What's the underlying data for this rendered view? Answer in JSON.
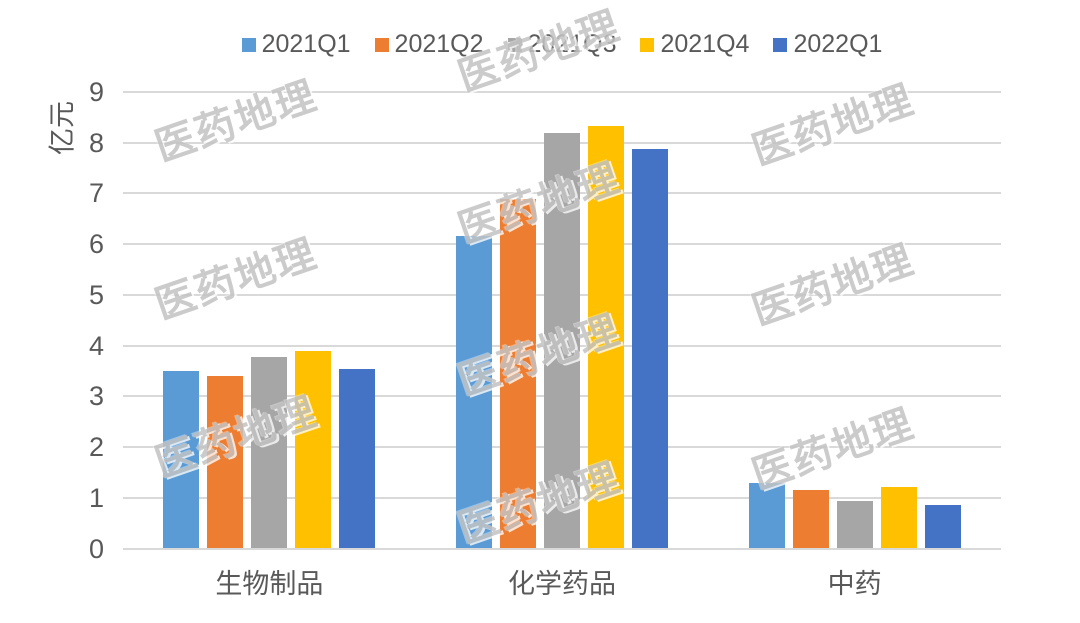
{
  "watermark": {
    "text": "医药地理"
  },
  "colors": {
    "grid": "#d9d9d9",
    "label_text": "#595959"
  },
  "chart_data": {
    "type": "bar",
    "title": "",
    "xlabel": "",
    "ylabel": "亿元",
    "ylim": [
      0,
      9
    ],
    "yticks": [
      0,
      1,
      2,
      3,
      4,
      5,
      6,
      7,
      8,
      9
    ],
    "grid": true,
    "legend_position": "top",
    "categories": [
      "生物制品",
      "化学药品",
      "中药"
    ],
    "series": [
      {
        "name": "2021Q1",
        "color": "#5B9BD5",
        "values": [
          3.5,
          6.17,
          1.3
        ]
      },
      {
        "name": "2021Q2",
        "color": "#ED7D31",
        "values": [
          3.4,
          6.9,
          1.15
        ]
      },
      {
        "name": "2021Q3",
        "color": "#A6A6A6",
        "values": [
          3.77,
          8.2,
          0.94
        ]
      },
      {
        "name": "2021Q4",
        "color": "#FFC000",
        "values": [
          3.9,
          8.33,
          1.21
        ]
      },
      {
        "name": "2022Q1",
        "color": "#4472C4",
        "values": [
          3.53,
          7.87,
          0.85
        ]
      }
    ]
  }
}
